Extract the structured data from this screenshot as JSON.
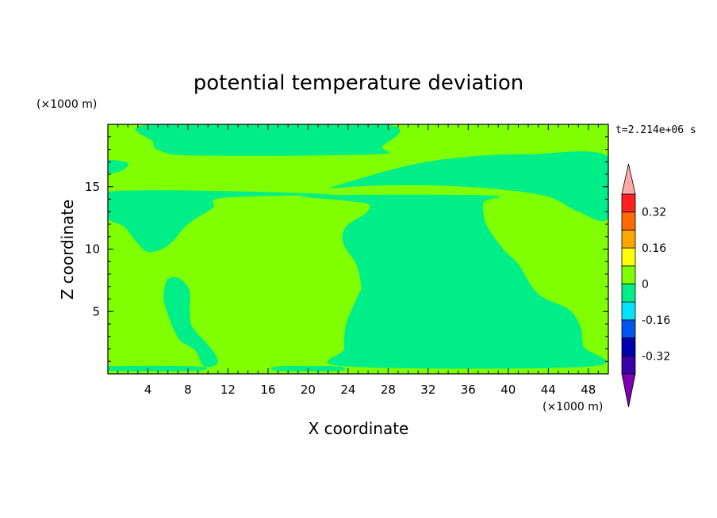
{
  "chart_data": {
    "type": "heatmap",
    "title": "potential temperature deviation",
    "xlabel": "X coordinate",
    "ylabel": "Z coordinate",
    "x_unit": "(×1000 m)",
    "y_unit": "(×1000 m)",
    "time_label": "t=2.214e+06 s",
    "xlim": [
      0,
      50
    ],
    "ylim": [
      0,
      20
    ],
    "x_ticks": [
      4,
      8,
      12,
      16,
      20,
      24,
      28,
      32,
      36,
      40,
      44,
      48
    ],
    "y_ticks": [
      5,
      10,
      15
    ],
    "x_tick_labels": [
      "4",
      "8",
      "12",
      "16",
      "20",
      "24",
      "28",
      "32",
      "36",
      "40",
      "44",
      "48"
    ],
    "y_tick_labels": [
      "5",
      "10",
      "15"
    ],
    "background_level_color": "#80ff00",
    "negative_level_color": "#00ee88",
    "colorbar": {
      "levels": [
        -0.4,
        -0.32,
        -0.24,
        -0.16,
        -0.08,
        0,
        0.08,
        0.16,
        0.24,
        0.32,
        0.4
      ],
      "colors": [
        "#3a00a8",
        "#0000b0",
        "#0055ee",
        "#00e4ff",
        "#00ee88",
        "#80ff00",
        "#ffff00",
        "#ffa500",
        "#ff6a00",
        "#ff2020"
      ],
      "under_color": "#7a00b0",
      "over_color": "#ffaaaa",
      "tick_labels": [
        "0.32",
        "0.16",
        "0",
        "-0.16",
        "-0.32"
      ],
      "tick_values": [
        0.32,
        0.16,
        0,
        -0.16,
        -0.32
      ]
    },
    "regions": [
      {
        "name": "upper-band",
        "level": -0.04,
        "points": [
          [
            4.5,
            20
          ],
          [
            27.5,
            20
          ],
          [
            27.4,
            18.2
          ],
          [
            26.6,
            17.6
          ],
          [
            9,
            17.5
          ],
          [
            5.2,
            17.9
          ],
          [
            4.5,
            18.6
          ]
        ]
      },
      {
        "name": "upper-left-strip",
        "level": -0.04,
        "points": [
          [
            0,
            17.1
          ],
          [
            2.0,
            16.9
          ],
          [
            1.4,
            16.3
          ],
          [
            0,
            16.1
          ]
        ]
      },
      {
        "name": "upper-right-plume",
        "level": -0.04,
        "points": [
          [
            22.5,
            15.0
          ],
          [
            30,
            16.7
          ],
          [
            36,
            17.4
          ],
          [
            42,
            17.6
          ],
          [
            50,
            17.4
          ],
          [
            50,
            12.5
          ],
          [
            47,
            13.0
          ],
          [
            44,
            14.2
          ],
          [
            39,
            14.8
          ],
          [
            33,
            15.1
          ],
          [
            27,
            15.1
          ],
          [
            22.5,
            14.9
          ]
        ]
      },
      {
        "name": "left-lobe",
        "level": -0.04,
        "points": [
          [
            0,
            14.6
          ],
          [
            22.2,
            14.4
          ],
          [
            11.5,
            14.1
          ],
          [
            10.5,
            13.3
          ],
          [
            8.0,
            12.0
          ],
          [
            6.2,
            10.4
          ],
          [
            4.6,
            9.8
          ],
          [
            3.5,
            10.0
          ],
          [
            1.6,
            11.8
          ],
          [
            0,
            12.5
          ]
        ]
      },
      {
        "name": "central-right-region",
        "level": -0.04,
        "points": [
          [
            19.8,
            14.3
          ],
          [
            38,
            14.3
          ],
          [
            37.5,
            13.7
          ],
          [
            37.8,
            12.0
          ],
          [
            39.5,
            10.0
          ],
          [
            41,
            8.8
          ],
          [
            43,
            6.4
          ],
          [
            46,
            5.2
          ],
          [
            47.2,
            3.8
          ],
          [
            47.5,
            2.2
          ],
          [
            48.2,
            0.6
          ],
          [
            23.8,
            0.6
          ],
          [
            23.6,
            2.0
          ],
          [
            23.8,
            4.0
          ],
          [
            25.0,
            6.3
          ],
          [
            25.3,
            7.0
          ],
          [
            24.8,
            8.8
          ],
          [
            23.5,
            10.5
          ],
          [
            23.8,
            11.8
          ],
          [
            25.8,
            12.9
          ],
          [
            26.0,
            13.6
          ],
          [
            23.6,
            13.9
          ]
        ]
      },
      {
        "name": "left-tongue",
        "level": -0.04,
        "points": [
          [
            6.0,
            7.6
          ],
          [
            7.0,
            7.7
          ],
          [
            7.8,
            7.2
          ],
          [
            8.2,
            6.5
          ],
          [
            8.2,
            5.0
          ],
          [
            8.4,
            3.8
          ],
          [
            9.7,
            2.6
          ],
          [
            10.7,
            1.6
          ],
          [
            10.9,
            0.8
          ],
          [
            9.6,
            0.6
          ],
          [
            8.7,
            1.9
          ],
          [
            7.0,
            2.9
          ],
          [
            5.7,
            5.5
          ],
          [
            5.6,
            6.6
          ]
        ]
      },
      {
        "name": "bottom-left-strip",
        "level": -0.04,
        "points": [
          [
            0,
            0.6
          ],
          [
            8.8,
            0.6
          ],
          [
            8.8,
            0.25
          ],
          [
            0,
            0.25
          ]
        ]
      },
      {
        "name": "bottom-mid-strip",
        "level": -0.04,
        "points": [
          [
            17.0,
            0.6
          ],
          [
            23.0,
            0.6
          ],
          [
            23.0,
            0.25
          ],
          [
            17.0,
            0.25
          ]
        ]
      }
    ]
  }
}
